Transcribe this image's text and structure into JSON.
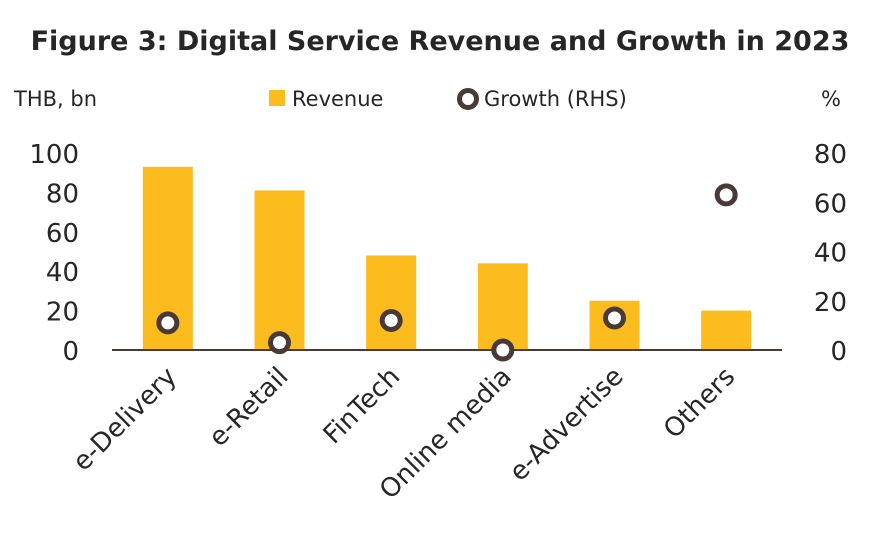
{
  "chart_data": {
    "type": "bar",
    "title": "Figure 3: Digital Service Revenue and Growth in 2023",
    "ylabel_left": "THB, bn",
    "ylabel_right": "%",
    "categories": [
      "e-Delivery",
      "e-Retail",
      "FinTech",
      "Online media",
      "e-Advertise",
      "Others"
    ],
    "series": [
      {
        "name": "Revenue",
        "type": "bar",
        "axis": "left",
        "color": "#FDBC1E",
        "values": [
          93,
          81,
          48,
          44,
          25,
          20
        ]
      },
      {
        "name": "Growth (RHS)",
        "type": "scatter",
        "axis": "right",
        "color": "#4A3A35",
        "values": [
          11,
          3,
          12,
          0,
          13,
          63
        ]
      }
    ],
    "ylim_left": [
      0,
      100
    ],
    "yticks_left": [
      "0",
      "20",
      "40",
      "60",
      "80",
      "100"
    ],
    "ylim_right": [
      0,
      80
    ],
    "yticks_right": [
      "0",
      "20",
      "40",
      "60",
      "80"
    ],
    "legend_position": "top-center",
    "grid": false
  }
}
